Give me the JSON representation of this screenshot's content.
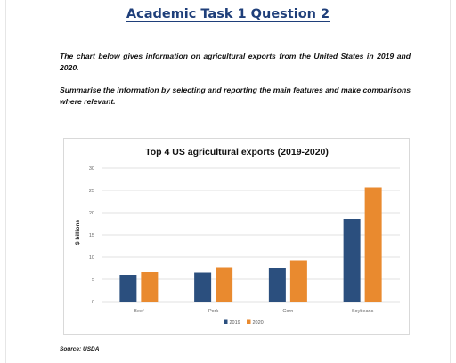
{
  "page": {
    "heading": "Academic Task 1 Question 2",
    "intro": "The chart below gives information on agricultural exports from the United States in 2019 and 2020.",
    "instruction": "Summarise the information by selecting and reporting the main features and make comparisons where relevant.",
    "source": "Source: USDA"
  },
  "chart_data": {
    "type": "bar",
    "title": "Top 4 US agricultural exports (2019-2020)",
    "xlabel": "",
    "ylabel": "$ billions",
    "ylim": [
      0,
      30
    ],
    "yticks": [
      0,
      5,
      10,
      15,
      20,
      25,
      30
    ],
    "grid": true,
    "legend_position": "bottom",
    "categories": [
      "Beef",
      "Pork",
      "Corn",
      "Soybeans"
    ],
    "series": [
      {
        "name": "2019",
        "color": "#2b4f7e",
        "values": [
          6.0,
          6.5,
          7.6,
          18.6
        ]
      },
      {
        "name": "2020",
        "color": "#e98a2f",
        "values": [
          6.6,
          7.7,
          9.3,
          25.7
        ]
      }
    ]
  }
}
